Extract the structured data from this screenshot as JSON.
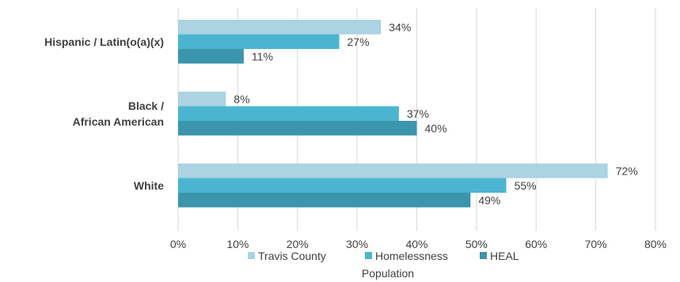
{
  "chart_data": {
    "type": "bar",
    "orientation": "horizontal",
    "categories": [
      "Hispanic / Latin(o(a)(x)",
      "Black / African American",
      "White"
    ],
    "category_label_lines": [
      [
        "Hispanic / Latin(o(a)(x)"
      ],
      [
        "Black /",
        "African American"
      ],
      [
        "White"
      ]
    ],
    "series": [
      {
        "name": "Travis County",
        "values": [
          34,
          8,
          72
        ],
        "color": "#abd3e2"
      },
      {
        "name": "Homelessness",
        "values": [
          27,
          37,
          55
        ],
        "color": "#4bb5d1"
      },
      {
        "name": "HEAL",
        "values": [
          11,
          40,
          49
        ],
        "color": "#3a95ad"
      }
    ],
    "data_labels": [
      [
        "34%",
        "8%",
        "72%"
      ],
      [
        "27%",
        "37%",
        "55%"
      ],
      [
        "11%",
        "40%",
        "49%"
      ]
    ],
    "xlim": [
      0,
      80
    ],
    "ticks": [
      "0%",
      "10%",
      "20%",
      "30%",
      "40%",
      "50%",
      "60%",
      "70%",
      "80%"
    ],
    "xlabel": "Population",
    "grid": true,
    "legend_position": "bottom"
  }
}
